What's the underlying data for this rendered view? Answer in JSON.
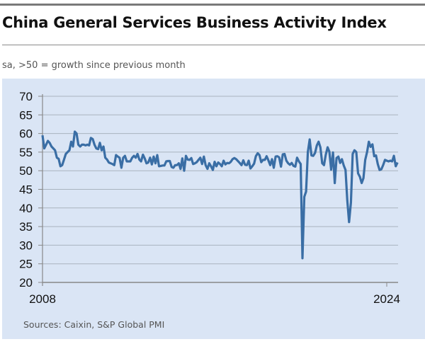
{
  "title": "China General Services Business Activity Index",
  "subtitle": "sa, >50 = growth since previous month",
  "source": "Sources: Caixin, S&P Global PMI",
  "colors": {
    "line": "#3a6ea5",
    "panel": "#dae5f5",
    "grid": "#a9b3bf"
  },
  "chart_data": {
    "type": "line",
    "title": "China General Services Business Activity Index",
    "xlabel": "",
    "ylabel": "",
    "ylim": [
      20,
      70
    ],
    "yticks": [
      "20",
      "25",
      "30",
      "35",
      "40",
      "45",
      "50",
      "55",
      "60",
      "65",
      "70"
    ],
    "xticks": [
      "2008",
      "2024"
    ],
    "grid": true,
    "frequency": "monthly",
    "start": "2008-01",
    "values": [
      59.5,
      56,
      57,
      58,
      57.5,
      56.5,
      56,
      55.5,
      53.5,
      53.2,
      51.2,
      51.5,
      53,
      54.5,
      55,
      55.5,
      57.8,
      56.5,
      60.5,
      60,
      57,
      56.5,
      57,
      57,
      56.8,
      57,
      56.8,
      58.8,
      58.5,
      57,
      56,
      55.8,
      57.5,
      55.5,
      56.5,
      53.5,
      53,
      52.2,
      52,
      51.8,
      51.5,
      54.2,
      53.8,
      53.5,
      50.8,
      53.5,
      54,
      52.5,
      52.5,
      52.5,
      53.5,
      54,
      53.5,
      54.5,
      53,
      52.5,
      54.3,
      53.3,
      52,
      52.2,
      53.5,
      51.7,
      53.8,
      52,
      54.2,
      51.2,
      51.3,
      51.4,
      51.4,
      52.5,
      52.6,
      52.6,
      51,
      50.8,
      51.5,
      51.5,
      52,
      50.5,
      53.3,
      50,
      54,
      53,
      52.9,
      53.4,
      51.8,
      52,
      52.3,
      52.9,
      53.5,
      51.8,
      53.8,
      51.5,
      50.5,
      52,
      51.2,
      50.2,
      52.4,
      51.2,
      52.2,
      51.8,
      51.2,
      52.7,
      51.7,
      52.1,
      52,
      52.4,
      53.1,
      53.4,
      53.1,
      52.6,
      52.1,
      51.5,
      52.8,
      51.6,
      51.5,
      52.7,
      50.6,
      51.2,
      51.9,
      53.9,
      54.7,
      54.2,
      52.3,
      52.9,
      52.9,
      53.9,
      52.8,
      51.5,
      53.1,
      50.8,
      53.8,
      53.9,
      53.6,
      51.1,
      54.4,
      54.5,
      52.7,
      52,
      51.6,
      52.1,
      51.3,
      51.1,
      53.5,
      52.5,
      51.8,
      26.5,
      43,
      44.4,
      55,
      58.4,
      54.1,
      54,
      54.8,
      56.8,
      57.8,
      56.3,
      52,
      51.5,
      54.3,
      56.3,
      55.1,
      50.3,
      54.9,
      46.7,
      53.4,
      53.8,
      52.1,
      53.1,
      51.4,
      50.2,
      42,
      36.2,
      41.4,
      54.5,
      55.5,
      55,
      49.3,
      48.4,
      46.7,
      48,
      52.9,
      55,
      57.8,
      56.4,
      57.1,
      53.9,
      54.1,
      51.8,
      50.2,
      50.4,
      51.5,
      52.9,
      52.7,
      52.5,
      52.7,
      52.5,
      54,
      51.2,
      52.2
    ]
  }
}
